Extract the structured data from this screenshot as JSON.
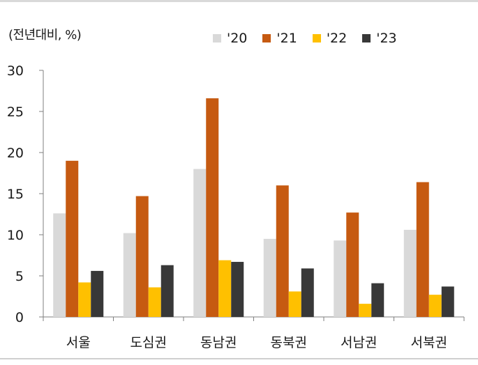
{
  "unit_label": "(전년대비, %)",
  "colors": {
    "s20": "#d9d9d9",
    "s21": "#c65a11",
    "s22": "#ffc000",
    "s23": "#383838",
    "axis": "#7f7f7f"
  },
  "chart_data": {
    "type": "bar",
    "title": "",
    "xlabel": "",
    "ylabel": "(전년대비, %)",
    "ylim": [
      0,
      30
    ],
    "yticks": [
      0,
      5,
      10,
      15,
      20,
      25,
      30
    ],
    "categories": [
      "서울",
      "도심권",
      "동남권",
      "동북권",
      "서남권",
      "서북권"
    ],
    "series": [
      {
        "name": "'20",
        "color": "#d9d9d9",
        "values": [
          12.6,
          10.2,
          18.0,
          9.5,
          9.3,
          10.6
        ]
      },
      {
        "name": "'21",
        "color": "#c65a11",
        "values": [
          19.0,
          14.7,
          26.6,
          16.0,
          12.7,
          16.4
        ]
      },
      {
        "name": "'22",
        "color": "#ffc000",
        "values": [
          4.2,
          3.6,
          6.9,
          3.1,
          1.6,
          2.7
        ]
      },
      {
        "name": "'23",
        "color": "#383838",
        "values": [
          5.6,
          6.3,
          6.7,
          5.9,
          4.1,
          3.7
        ]
      }
    ],
    "grid": false,
    "legend_position": "top-right"
  }
}
